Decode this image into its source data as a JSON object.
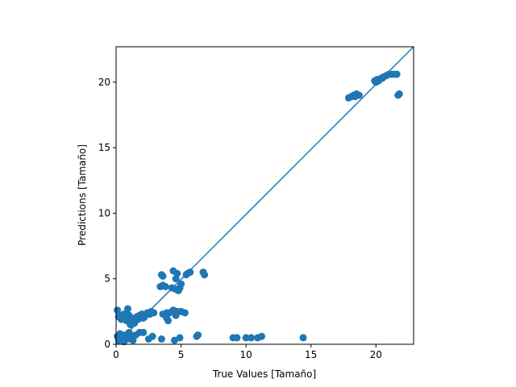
{
  "chart_data": {
    "type": "scatter",
    "title": "",
    "xlabel": "True Values [Tamaño]",
    "ylabel": "Predictions [Tamaño]",
    "xlim": [
      0,
      22.9
    ],
    "ylim": [
      0,
      22.7
    ],
    "xticks": [
      0,
      5,
      10,
      15,
      20
    ],
    "yticks": [
      0,
      5,
      10,
      15,
      20
    ],
    "grid": false,
    "reference_line": {
      "x": [
        0,
        22.9
      ],
      "y": [
        0,
        22.9
      ]
    },
    "color": "#1f77b4",
    "series": [
      {
        "points": [
          [
            0.1,
            2.6
          ],
          [
            0.3,
            2.2
          ],
          [
            0.5,
            2.0
          ],
          [
            0.8,
            1.8
          ],
          [
            1.0,
            2.2
          ],
          [
            1.2,
            2.0
          ],
          [
            1.4,
            1.6
          ],
          [
            1.6,
            2.1
          ],
          [
            1.8,
            2.2
          ],
          [
            2.0,
            2.3
          ],
          [
            2.2,
            2.1
          ],
          [
            2.4,
            2.4
          ],
          [
            2.7,
            2.5
          ],
          [
            2.9,
            2.4
          ],
          [
            0.6,
            2.3
          ],
          [
            0.9,
            2.7
          ],
          [
            1.1,
            1.5
          ],
          [
            1.3,
            1.7
          ],
          [
            1.5,
            2.0
          ],
          [
            1.7,
            1.9
          ],
          [
            0.4,
            1.9
          ],
          [
            0.2,
            2.1
          ],
          [
            2.1,
            2.0
          ],
          [
            2.6,
            2.3
          ],
          [
            0.1,
            0.6
          ],
          [
            0.3,
            0.8
          ],
          [
            0.5,
            0.5
          ],
          [
            0.7,
            0.7
          ],
          [
            0.9,
            0.4
          ],
          [
            1.2,
            0.6
          ],
          [
            1.5,
            0.7
          ],
          [
            1.8,
            0.9
          ],
          [
            2.1,
            0.9
          ],
          [
            1.3,
            0.3
          ],
          [
            0.2,
            0.3
          ],
          [
            0.6,
            0.2
          ],
          [
            1.0,
            0.9
          ],
          [
            2.5,
            0.4
          ],
          [
            2.8,
            0.6
          ],
          [
            3.5,
            0.4
          ],
          [
            3.6,
            2.3
          ],
          [
            3.9,
            2.4
          ],
          [
            4.1,
            2.4
          ],
          [
            4.4,
            2.6
          ],
          [
            4.7,
            2.5
          ],
          [
            4.0,
            1.8
          ],
          [
            4.6,
            2.2
          ],
          [
            5.0,
            2.5
          ],
          [
            5.3,
            2.4
          ],
          [
            3.9,
            2.0
          ],
          [
            3.4,
            4.4
          ],
          [
            3.6,
            4.5
          ],
          [
            3.8,
            4.4
          ],
          [
            4.3,
            4.3
          ],
          [
            4.8,
            4.1
          ],
          [
            5.0,
            4.6
          ],
          [
            4.9,
            4.3
          ],
          [
            4.6,
            4.2
          ],
          [
            3.5,
            5.3
          ],
          [
            3.6,
            5.2
          ],
          [
            4.4,
            5.6
          ],
          [
            4.7,
            5.4
          ],
          [
            5.4,
            5.3
          ],
          [
            5.7,
            5.5
          ],
          [
            5.5,
            5.4
          ],
          [
            6.7,
            5.5
          ],
          [
            6.8,
            5.3
          ],
          [
            4.6,
            5.0
          ],
          [
            4.5,
            0.3
          ],
          [
            4.9,
            0.5
          ],
          [
            6.2,
            0.6
          ],
          [
            6.3,
            0.7
          ],
          [
            9.0,
            0.5
          ],
          [
            9.3,
            0.5
          ],
          [
            10.0,
            0.5
          ],
          [
            10.4,
            0.5
          ],
          [
            10.9,
            0.5
          ],
          [
            11.2,
            0.6
          ],
          [
            14.4,
            0.5
          ],
          [
            17.9,
            18.8
          ],
          [
            18.1,
            18.9
          ],
          [
            18.3,
            19.0
          ],
          [
            18.5,
            19.1
          ],
          [
            18.7,
            19.0
          ],
          [
            18.4,
            18.9
          ],
          [
            19.9,
            20.1
          ],
          [
            20.0,
            20.0
          ],
          [
            20.2,
            20.1
          ],
          [
            20.4,
            20.3
          ],
          [
            20.6,
            20.4
          ],
          [
            20.8,
            20.5
          ],
          [
            21.0,
            20.6
          ],
          [
            21.2,
            20.6
          ],
          [
            21.4,
            20.6
          ],
          [
            21.6,
            20.6
          ],
          [
            21.7,
            19.0
          ],
          [
            21.8,
            19.1
          ],
          [
            20.1,
            20.2
          ],
          [
            20.5,
            20.3
          ]
        ]
      }
    ]
  }
}
